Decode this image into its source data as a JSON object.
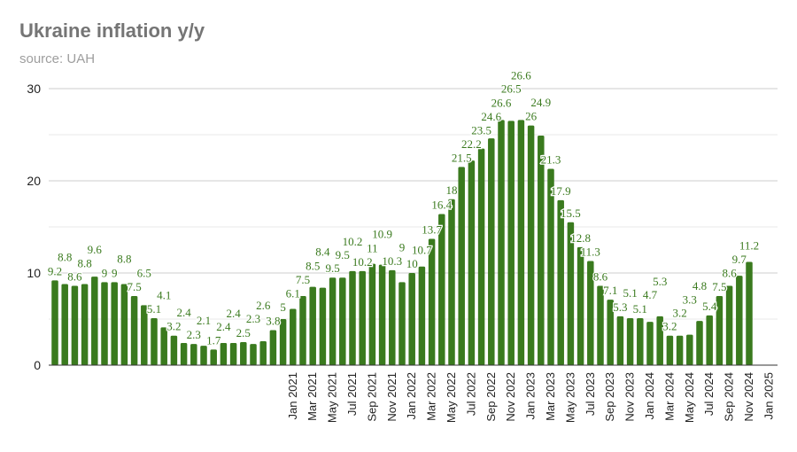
{
  "chart_data": {
    "type": "bar",
    "title": "Ukraine inflation y/y",
    "subtitle": "source: UAH",
    "xlabel": "",
    "ylabel": "",
    "ylim": [
      0,
      30
    ],
    "yticks": [
      0,
      10,
      20,
      30
    ],
    "grid": true,
    "bar_color": "#3a7a1e",
    "label_color": "#3a7a1e",
    "start_month": "Jan 2019",
    "x_tick_labels": [
      "Jan 2021",
      "Mar 2021",
      "May 2021",
      "Jul 2021",
      "Sep 2021",
      "Nov 2021",
      "Jan 2022",
      "Mar 2022",
      "May 2022",
      "Jul 2022",
      "Sep 2022",
      "Nov 2022",
      "Jan 2023",
      "Mar 2023",
      "May 2023",
      "Jul 2023",
      "Sep 2023",
      "Nov 2023",
      "Jan 2024",
      "Mar 2024",
      "May 2024",
      "Jul 2024",
      "Sep 2024",
      "Nov 2024",
      "Jan 2025"
    ],
    "values": [
      9.2,
      8.8,
      8.6,
      8.8,
      9.6,
      9,
      9,
      8.8,
      7.5,
      6.5,
      5.1,
      4.1,
      3.2,
      2.4,
      2.3,
      2.1,
      1.7,
      2.4,
      2.4,
      2.5,
      2.3,
      2.6,
      3.8,
      5,
      6.1,
      7.5,
      8.5,
      8.4,
      9.5,
      9.5,
      10.2,
      10.2,
      11,
      10.9,
      10.3,
      9,
      10,
      10.7,
      13.7,
      16.4,
      18,
      21.5,
      22.2,
      23.5,
      24.6,
      26.6,
      26.5,
      26.6,
      26,
      24.9,
      21.3,
      17.9,
      15.5,
      12.8,
      11.3,
      8.6,
      7.1,
      5.3,
      5.1,
      5.1,
      4.7,
      5.3,
      3.2,
      3.2,
      3.3,
      4.8,
      5.4,
      7.5,
      8.6,
      9.7,
      11.2
    ]
  }
}
